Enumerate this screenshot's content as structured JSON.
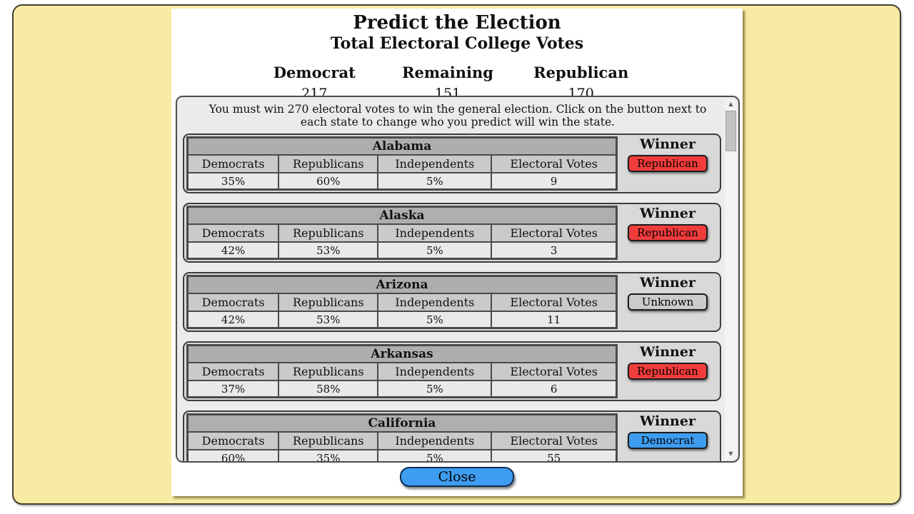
{
  "header": {
    "title": "Predict the Election",
    "subtitle": "Total Electoral College Votes"
  },
  "totals": {
    "columns": [
      {
        "label": "Democrat",
        "value": "217"
      },
      {
        "label": "Remaining",
        "value": "151"
      },
      {
        "label": "Republican",
        "value": "170"
      }
    ]
  },
  "instructions": "You must win 270 electoral votes to win the general election. Click on the button next to each state to change who you predict will win the state.",
  "table_headers": [
    "Democrats",
    "Republicans",
    "Independents",
    "Electoral Votes"
  ],
  "winner_label": "Winner",
  "states": [
    {
      "name": "Alabama",
      "democrats": "35%",
      "republicans": "60%",
      "independents": "5%",
      "electoral_votes": "9",
      "winner": "Republican"
    },
    {
      "name": "Alaska",
      "democrats": "42%",
      "republicans": "53%",
      "independents": "5%",
      "electoral_votes": "3",
      "winner": "Republican"
    },
    {
      "name": "Arizona",
      "democrats": "42%",
      "republicans": "53%",
      "independents": "5%",
      "electoral_votes": "11",
      "winner": "Unknown"
    },
    {
      "name": "Arkansas",
      "democrats": "37%",
      "republicans": "58%",
      "independents": "5%",
      "electoral_votes": "6",
      "winner": "Republican"
    },
    {
      "name": "California",
      "democrats": "60%",
      "republicans": "35%",
      "independents": "5%",
      "electoral_votes": "55",
      "winner": "Democrat"
    }
  ],
  "close_label": "Close",
  "scrollbar": {
    "up_icon": "▲",
    "down_icon": "▼"
  },
  "colors": {
    "republican": "#f13c3c",
    "democrat": "#3e9df0",
    "unknown": "#cbcbcb",
    "close_button": "#3e9df0",
    "panel_background": "#f8eba3"
  }
}
